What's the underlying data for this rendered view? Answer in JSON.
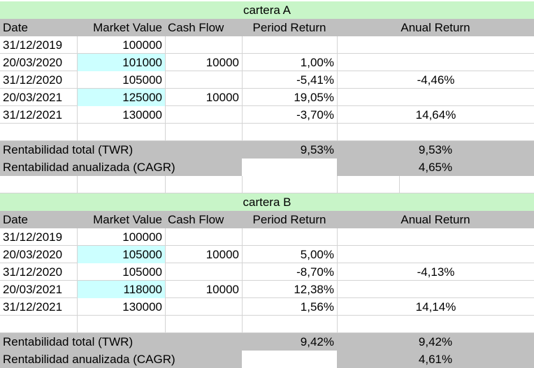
{
  "portfolios": [
    {
      "title": "cartera A",
      "headers": [
        "Date",
        "Market Value",
        "Cash Flow",
        "Period Return",
        "Anual Return"
      ],
      "rows": [
        {
          "date": "31/12/2019",
          "market_value": "100000",
          "cash_flow": "",
          "period_return": "",
          "anual_return": "",
          "highlight": false
        },
        {
          "date": "20/03/2020",
          "market_value": "101000",
          "cash_flow": "10000",
          "period_return": "1,00%",
          "anual_return": "",
          "highlight": true
        },
        {
          "date": "31/12/2020",
          "market_value": "105000",
          "cash_flow": "",
          "period_return": "-5,41%",
          "anual_return": "-4,46%",
          "highlight": false
        },
        {
          "date": "20/03/2021",
          "market_value": "125000",
          "cash_flow": "10000",
          "period_return": "19,05%",
          "anual_return": "",
          "highlight": true
        },
        {
          "date": "31/12/2021",
          "market_value": "130000",
          "cash_flow": "",
          "period_return": "-3,70%",
          "anual_return": "14,64%",
          "highlight": false
        }
      ],
      "twr_label": "Rentabilidad total (TWR)",
      "twr_period": "9,53%",
      "twr_anual": "9,53%",
      "cagr_label": "Rentabilidad anualizada (CAGR)",
      "cagr_anual": "4,65%"
    },
    {
      "title": "cartera B",
      "headers": [
        "Date",
        "Market Value",
        "Cash Flow",
        "Period Return",
        "Anual Return"
      ],
      "rows": [
        {
          "date": "31/12/2019",
          "market_value": "100000",
          "cash_flow": "",
          "period_return": "",
          "anual_return": "",
          "highlight": false
        },
        {
          "date": "20/03/2020",
          "market_value": "105000",
          "cash_flow": "10000",
          "period_return": "5,00%",
          "anual_return": "",
          "highlight": true
        },
        {
          "date": "31/12/2020",
          "market_value": "105000",
          "cash_flow": "",
          "period_return": "-8,70%",
          "anual_return": "-4,13%",
          "highlight": false
        },
        {
          "date": "20/03/2021",
          "market_value": "118000",
          "cash_flow": "10000",
          "period_return": "12,38%",
          "anual_return": "",
          "highlight": true
        },
        {
          "date": "31/12/2021",
          "market_value": "130000",
          "cash_flow": "",
          "period_return": "1,56%",
          "anual_return": "14,14%",
          "highlight": false
        }
      ],
      "twr_label": "Rentabilidad total (TWR)",
      "twr_period": "9,42%",
      "twr_anual": "9,42%",
      "cagr_label": "Rentabilidad anualizada (CAGR)",
      "cagr_anual": "4,61%"
    }
  ]
}
